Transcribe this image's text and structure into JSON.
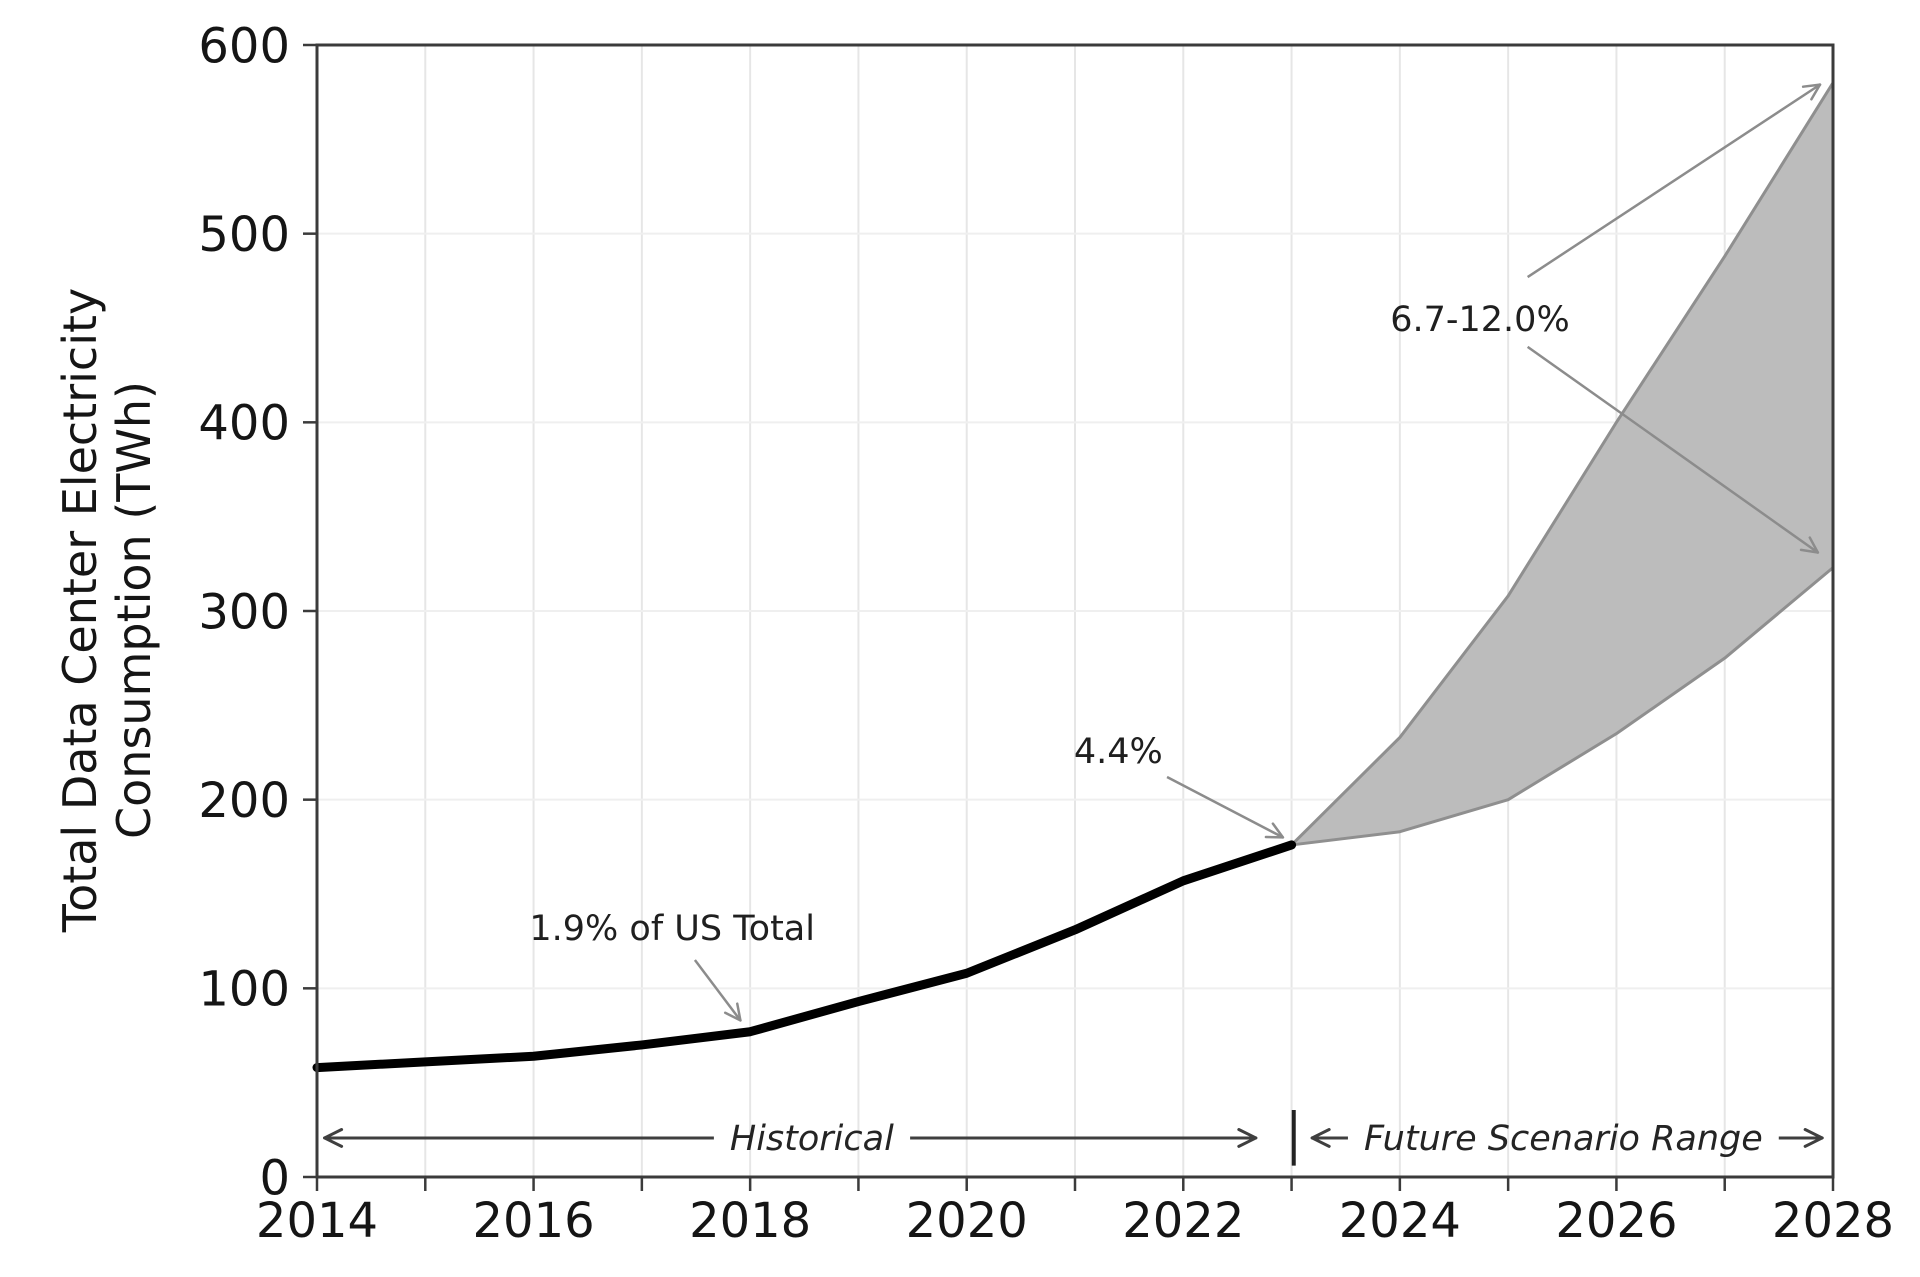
{
  "figure": {
    "background": "#ffffff"
  },
  "chart_data": {
    "type": "line",
    "title": "",
    "xlabel": "",
    "ylabel_lines": [
      "Total Data Center Electricity",
      "Consumption (TWh)"
    ],
    "xlim": [
      2014,
      2028
    ],
    "ylim": [
      0,
      600
    ],
    "xticks_labeled": [
      2014,
      2016,
      2018,
      2020,
      2022,
      2024,
      2026,
      2028
    ],
    "xticks_minor": [
      2015,
      2017,
      2019,
      2021,
      2023,
      2025,
      2027
    ],
    "yticks": [
      0,
      100,
      200,
      300,
      400,
      500,
      600
    ],
    "grid": true,
    "legend": "none",
    "series": [
      {
        "name": "Historical",
        "type": "line",
        "color": "#000000",
        "x": [
          2014,
          2015,
          2016,
          2017,
          2018,
          2019,
          2020,
          2021,
          2022,
          2023
        ],
        "values": [
          58,
          61,
          64,
          70,
          77,
          93,
          108,
          131,
          157,
          176
        ]
      },
      {
        "name": "Future Scenario Range",
        "type": "band",
        "fill": "#bcbcbc",
        "edge": "#8f8f8f",
        "x": [
          2023,
          2024,
          2025,
          2026,
          2027,
          2028
        ],
        "low": [
          176,
          183,
          200,
          235,
          275,
          323
        ],
        "high": [
          176,
          233,
          308,
          400,
          488,
          580
        ]
      }
    ],
    "annotations": {
      "pointers": [
        {
          "text": "1.9% of US Total",
          "text_xy": [
            2017.28,
            132
          ],
          "arrows": [
            {
              "from": [
                2017.49,
                115
              ],
              "to": [
                2017.91,
                83
              ]
            }
          ]
        },
        {
          "text": "4.4%",
          "text_xy": [
            2021.4,
            226
          ],
          "arrows": [
            {
              "from": [
                2021.85,
                212
              ],
              "to": [
                2022.92,
                180
              ]
            }
          ]
        },
        {
          "text": "6.7-12.0%",
          "text_xy": [
            2024.74,
            455
          ],
          "arrows": [
            {
              "from": [
                2025.18,
                477
              ],
              "to": [
                2027.88,
                579
              ]
            },
            {
              "from": [
                2025.18,
                440
              ],
              "to": [
                2027.86,
                331
              ]
            }
          ]
        }
      ],
      "range_arrows": [
        {
          "text": "Historical",
          "y": 20.7,
          "x_start": 2014.07,
          "x_end": 2022.67,
          "text_x": 2018.57
        },
        {
          "text": "Future Scenario Range",
          "y": 20.7,
          "x_start": 2023.19,
          "x_end": 2027.9,
          "text_x": 2025.51
        }
      ],
      "separator": {
        "x": 2023.02,
        "y_low": 6,
        "y_high": 35.5
      }
    },
    "colors": {
      "historical_line": "#000000",
      "band_fill": "#bcbcbc",
      "band_edge": "#8f8f8f",
      "pointer_arrow": "#8c8c8c",
      "range_arrow": "#3f3f3f",
      "spine": "#3b3b3b",
      "grid_vertical": "#e6e6e6",
      "grid_horizontal": "#efefef"
    }
  }
}
